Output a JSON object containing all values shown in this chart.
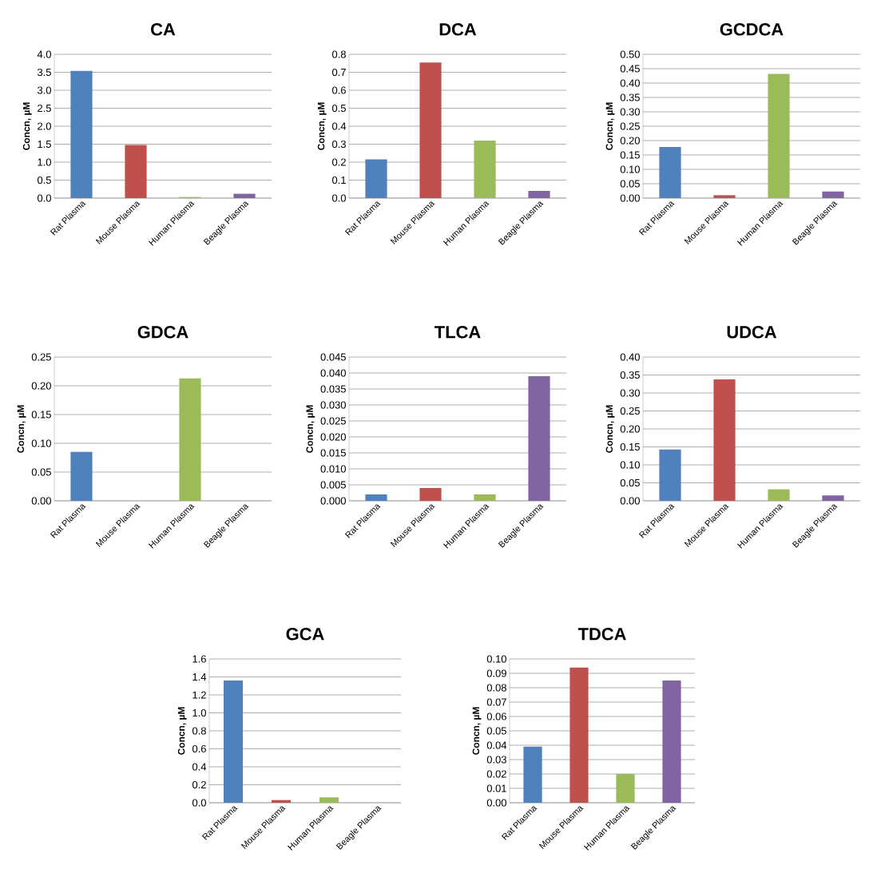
{
  "chart_data": [
    {
      "type": "bar",
      "title": "CA",
      "ylabel": "Concn, µM",
      "categories": [
        "Rat Plasma",
        "Mouse Plasma",
        "Human Plasma",
        "Beagle Plasma"
      ],
      "values": [
        3.54,
        1.48,
        0.03,
        0.12
      ],
      "colors": [
        "#4f81bd",
        "#c0504d",
        "#9bbb59",
        "#8064a2"
      ],
      "ylim": [
        0,
        4
      ],
      "yticks": [
        {
          "value": 0,
          "label": "0.0"
        },
        {
          "value": 0.5,
          "label": "0.5"
        },
        {
          "value": 1,
          "label": "1.0"
        },
        {
          "value": 1.5,
          "label": "1.5"
        },
        {
          "value": 2,
          "label": "2.0"
        },
        {
          "value": 2.5,
          "label": "2.5"
        },
        {
          "value": 3,
          "label": "3.0"
        },
        {
          "value": 3.5,
          "label": "3.5"
        },
        {
          "value": 4,
          "label": "4.0"
        }
      ],
      "grid": "y"
    },
    {
      "type": "bar",
      "title": "DCA",
      "ylabel": "Concn, µM",
      "categories": [
        "Rat Plasma",
        "Mouse Plasma",
        "Human Plasma",
        "Beagle Plasma"
      ],
      "values": [
        0.215,
        0.755,
        0.32,
        0.04
      ],
      "colors": [
        "#4f81bd",
        "#c0504d",
        "#9bbb59",
        "#8064a2"
      ],
      "ylim": [
        0,
        0.8
      ],
      "yticks": [
        {
          "value": 0,
          "label": "0.0"
        },
        0.1,
        0.2,
        0.3,
        0.4,
        0.5,
        0.6,
        0.7,
        0.8
      ],
      "grid": "y"
    },
    {
      "type": "bar",
      "title": "GCDCA",
      "ylabel": "Concn, µM",
      "categories": [
        "Rat Plasma",
        "Mouse Plasma",
        "Human Plasma",
        "Beagle Plasma"
      ],
      "values": [
        0.178,
        0.01,
        0.432,
        0.023
      ],
      "colors": [
        "#4f81bd",
        "#c0504d",
        "#9bbb59",
        "#8064a2"
      ],
      "ylim": [
        0,
        0.5
      ],
      "yticks": [
        {
          "value": 0,
          "label": "0.00"
        },
        0.05,
        {
          "value": 0.1,
          "label": "0.10"
        },
        0.15,
        {
          "value": 0.2,
          "label": "0.20"
        },
        0.25,
        {
          "value": 0.3,
          "label": "0.30"
        },
        0.35,
        {
          "value": 0.4,
          "label": "0.40"
        },
        0.45,
        {
          "value": 0.5,
          "label": "0.50"
        }
      ],
      "grid": "y"
    },
    {
      "type": "bar",
      "title": "GDCA",
      "ylabel": "Concn, µM",
      "categories": [
        "Rat Plasma",
        "Mouse Plasma",
        "Human Plasma",
        "Beagle Plasma"
      ],
      "values": [
        0.085,
        0,
        0.213,
        0
      ],
      "colors": [
        "#4f81bd",
        "#c0504d",
        "#9bbb59",
        "#8064a2"
      ],
      "ylim": [
        0,
        0.25
      ],
      "yticks": [
        {
          "value": 0,
          "label": "0.00"
        },
        0.05,
        {
          "value": 0.1,
          "label": "0.10"
        },
        0.15,
        {
          "value": 0.2,
          "label": "0.20"
        },
        0.25
      ],
      "grid": "y"
    },
    {
      "type": "bar",
      "title": "TLCA",
      "ylabel": "Concn, µM",
      "categories": [
        "Rat Plasma",
        "Mouse Plasma",
        "Human Plasma",
        "Beagle Plasma"
      ],
      "values": [
        0.002,
        0.004,
        0.002,
        0.039
      ],
      "colors": [
        "#4f81bd",
        "#c0504d",
        "#9bbb59",
        "#8064a2"
      ],
      "ylim": [
        0,
        0.045
      ],
      "yticks": [
        {
          "value": 0,
          "label": "0.000"
        },
        0.005,
        {
          "value": 0.01,
          "label": "0.010"
        },
        0.015,
        {
          "value": 0.02,
          "label": "0.020"
        },
        0.025,
        {
          "value": 0.03,
          "label": "0.030"
        },
        0.035,
        {
          "value": 0.04,
          "label": "0.040"
        },
        0.045
      ],
      "grid": "y"
    },
    {
      "type": "bar",
      "title": "UDCA",
      "ylabel": "Concn, µM",
      "categories": [
        "Rat Plasma",
        "Mouse Plasma",
        "Human Plasma",
        "Beagle Plasma"
      ],
      "values": [
        0.143,
        0.338,
        0.032,
        0.015
      ],
      "colors": [
        "#4f81bd",
        "#c0504d",
        "#9bbb59",
        "#8064a2"
      ],
      "ylim": [
        0,
        0.4
      ],
      "yticks": [
        {
          "value": 0,
          "label": "0.00"
        },
        0.05,
        {
          "value": 0.1,
          "label": "0.10"
        },
        0.15,
        {
          "value": 0.2,
          "label": "0.20"
        },
        0.25,
        {
          "value": 0.3,
          "label": "0.30"
        },
        0.35,
        {
          "value": 0.4,
          "label": "0.40"
        }
      ],
      "grid": "y"
    },
    {
      "type": "bar",
      "title": "GCA",
      "ylabel": "Concn, µM",
      "categories": [
        "Rat Plasma",
        "Mouse Plasma",
        "Human Plasma",
        "Beagle Plasma"
      ],
      "values": [
        1.36,
        0.03,
        0.06,
        0
      ],
      "colors": [
        "#4f81bd",
        "#c0504d",
        "#9bbb59",
        "#8064a2"
      ],
      "ylim": [
        0,
        1.6
      ],
      "yticks": [
        {
          "value": 0,
          "label": "0.0"
        },
        0.2,
        0.4,
        0.6,
        0.8,
        {
          "value": 1,
          "label": "1.0"
        },
        1.2,
        1.4,
        1.6
      ],
      "grid": "y"
    },
    {
      "type": "bar",
      "title": "TDCA",
      "ylabel": "Concn, µM",
      "categories": [
        "Rat Plasma",
        "Mouse Plasma",
        "Human Plasma",
        "Beagle Plasma"
      ],
      "values": [
        0.039,
        0.094,
        0.02,
        0.085
      ],
      "colors": [
        "#4f81bd",
        "#c0504d",
        "#9bbb59",
        "#8064a2"
      ],
      "ylim": [
        0,
        0.1
      ],
      "yticks": [
        {
          "value": 0,
          "label": "0.00"
        },
        0.01,
        0.02,
        0.03,
        0.04,
        0.05,
        0.06,
        0.07,
        0.08,
        0.09,
        {
          "value": 0.1,
          "label": "0.10"
        }
      ],
      "grid": "y"
    }
  ]
}
